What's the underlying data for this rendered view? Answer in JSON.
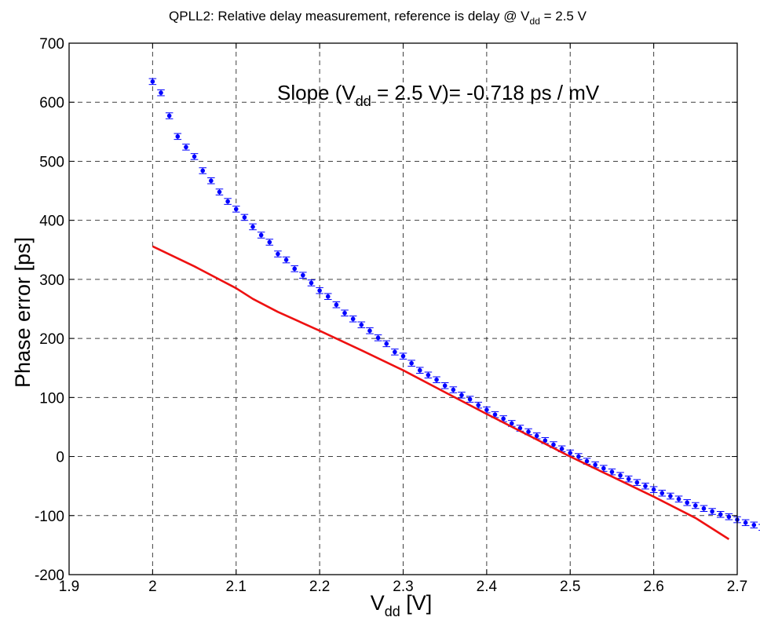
{
  "chart_data": {
    "type": "scatter",
    "title": {
      "prefix": "QPLL2: Relative delay measurement, reference is delay @ V",
      "sub": "dd",
      "suffix": " = 2.5 V"
    },
    "xlabel": {
      "main": "V",
      "sub": "dd",
      "suffix": " [V]"
    },
    "ylabel": "Phase error [ps]",
    "annotation": {
      "prefix": "Slope (V",
      "sub": "dd",
      "suffix": " = 2.5 V)= -0.718 ps / mV"
    },
    "xlim": [
      1.9,
      2.7
    ],
    "ylim": [
      -200,
      700
    ],
    "x_ticks": [
      1.9,
      2.0,
      2.1,
      2.2,
      2.3,
      2.4,
      2.5,
      2.6,
      2.7
    ],
    "x_tick_labels": [
      "1.9",
      "2",
      "2.1",
      "2.2",
      "2.3",
      "2.4",
      "2.5",
      "2.6",
      "2.7"
    ],
    "y_ticks": [
      -200,
      -100,
      0,
      100,
      200,
      300,
      400,
      500,
      600,
      700
    ],
    "y_tick_labels": [
      "-200",
      "-100",
      "0",
      "100",
      "200",
      "300",
      "400",
      "500",
      "600",
      "700"
    ],
    "grid": true,
    "series": [
      {
        "kind": "points-with-errorbars",
        "color": "#0000ff",
        "x_start": 2.0,
        "x_step": 0.01,
        "error": 5,
        "y": [
          635,
          616,
          577,
          542,
          524,
          508,
          484,
          467,
          448,
          432,
          419,
          405,
          389,
          375,
          363,
          343,
          333,
          318,
          307,
          294,
          281,
          271,
          257,
          243,
          233,
          223,
          213,
          201,
          191,
          177,
          170,
          158,
          146,
          138,
          130,
          120,
          113,
          104,
          97,
          87,
          79,
          71,
          64,
          56,
          48,
          42,
          35,
          27,
          20,
          13,
          6,
          0,
          -8,
          -14,
          -20,
          -26,
          -32,
          -38,
          -44,
          -50,
          -56,
          -62,
          -67,
          -72,
          -78,
          -83,
          -88,
          -93,
          -98,
          -102,
          -107,
          -112,
          -116,
          -120,
          -124
        ]
      },
      {
        "kind": "line",
        "color": "#ee1111",
        "x": [
          2.0,
          2.05,
          2.1,
          2.12,
          2.15,
          2.2,
          2.25,
          2.3,
          2.35,
          2.4,
          2.45,
          2.5,
          2.55,
          2.6,
          2.65,
          2.69
        ],
        "y": [
          356,
          322,
          285,
          267,
          245,
          213,
          180,
          146,
          109,
          72,
          36,
          0,
          -34,
          -68,
          -104,
          -140
        ]
      }
    ]
  }
}
